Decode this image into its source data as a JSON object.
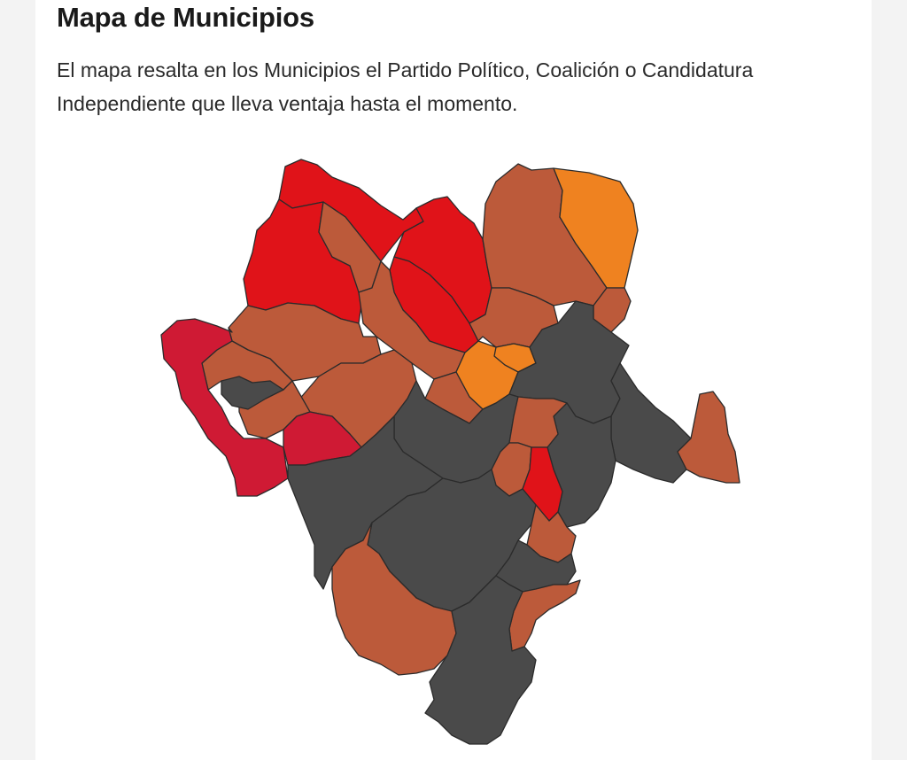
{
  "header": {
    "title": "Mapa de Municipios",
    "description": "El mapa resalta en los Municipios el Partido Político, Coalición o Candidatura Independiente que lleva ventaja hasta el momento."
  },
  "colors": {
    "page_background": "#f3f3f3",
    "card_background": "#ffffff",
    "red": "#e01319",
    "crimson": "#cf1a34",
    "brown": "#bc5a3a",
    "orange": "#ef8220",
    "gray": "#4a4a4a",
    "border": "#2b2b2b"
  },
  "map": {
    "legend_visible": false,
    "color_groups": [
      "red",
      "crimson",
      "brown",
      "orange",
      "gray"
    ]
  }
}
